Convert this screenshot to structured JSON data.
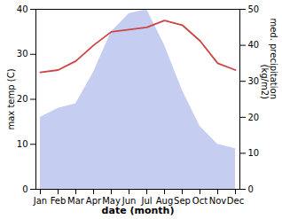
{
  "chart_data": {
    "type": "line",
    "x_label": "date (month)",
    "y_label": "max temp (C)",
    "y2_label": "med. precipitation\n(kg/m2)",
    "categories": [
      "Jan",
      "Feb",
      "Mar",
      "Apr",
      "May",
      "Jun",
      "Jul",
      "Aug",
      "Sep",
      "Oct",
      "Nov",
      "Dec"
    ],
    "series": [
      {
        "type": "area",
        "color": "#c5cef0",
        "values": [
          16,
          18,
          19,
          26,
          35,
          39,
          40,
          32,
          22,
          14,
          10,
          9
        ]
      },
      {
        "type": "line",
        "color": "#cc4444",
        "values": [
          26,
          26.5,
          28.5,
          32,
          35,
          35.5,
          36,
          37.5,
          36.5,
          33,
          28,
          26.5
        ]
      }
    ],
    "ylim": [
      0,
      40
    ],
    "yticks": [
      0,
      10,
      20,
      30,
      40
    ],
    "y2lim": [
      0,
      50
    ],
    "y2ticks": [
      0,
      10,
      20,
      30,
      40,
      50
    ]
  }
}
